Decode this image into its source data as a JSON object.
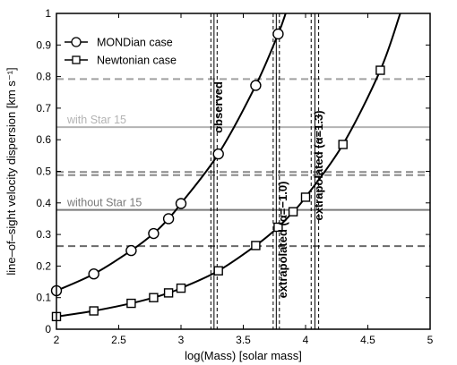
{
  "chart_data": {
    "type": "line",
    "xlabel": "log(Mass) [solar mass]",
    "ylabel": "line–of–sight velocity dispersion [km s⁻¹]",
    "xlim": [
      2,
      5
    ],
    "ylim": [
      0,
      1
    ],
    "xticks": [
      "2",
      "2.5",
      "3",
      "3.5",
      "4",
      "4.5",
      "5"
    ],
    "yticks": [
      "0",
      "0.1",
      "0.2",
      "0.3",
      "0.4",
      "0.5",
      "0.6",
      "0.7",
      "0.8",
      "0.9",
      "1"
    ],
    "legend_position": "top-left",
    "series": [
      {
        "name": "MONDian case",
        "marker": "circle",
        "color": "#000000",
        "x": [
          2.0,
          2.3,
          2.6,
          2.78,
          2.9,
          3.0,
          3.3,
          3.6,
          3.78
        ],
        "y": [
          0.122,
          0.175,
          0.249,
          0.303,
          0.35,
          0.398,
          0.555,
          0.772,
          0.935
        ],
        "curve_end": [
          3.84,
          1.0
        ]
      },
      {
        "name": "Newtonian case",
        "marker": "square",
        "color": "#000000",
        "x": [
          2.0,
          2.3,
          2.6,
          2.78,
          2.9,
          3.0,
          3.3,
          3.6,
          3.78,
          3.9,
          4.0,
          4.3,
          4.6
        ],
        "y": [
          0.04,
          0.058,
          0.082,
          0.1,
          0.115,
          0.13,
          0.185,
          0.265,
          0.323,
          0.372,
          0.418,
          0.585,
          0.82
        ],
        "curve_end": [
          4.76,
          1.0
        ]
      }
    ],
    "horizontal_lines": [
      {
        "y": 0.64,
        "label": "with Star 15",
        "style": "solid",
        "color": "#b3b3b3"
      },
      {
        "y": 0.378,
        "label": "without Star 15",
        "style": "solid",
        "color": "#7a7a7a"
      },
      {
        "y": 0.792,
        "label": "",
        "style": "dashed",
        "color": "#a0a0a0"
      },
      {
        "y": 0.498,
        "label": "",
        "style": "dashed",
        "color": "#8a8a8a"
      },
      {
        "y": 0.488,
        "label": "",
        "style": "dashed",
        "color": "#8a8a8a"
      },
      {
        "y": 0.263,
        "label": "",
        "style": "dashed",
        "color": "#6a6a6a"
      }
    ],
    "vertical_lines": [
      {
        "x": 3.265,
        "label": "observed",
        "lines": [
          3.24,
          3.265,
          3.29
        ]
      },
      {
        "x": 3.765,
        "label": "extrapolated (α=−1.0)",
        "lines": [
          3.74,
          3.765,
          3.79
        ]
      },
      {
        "x": 4.075,
        "label": "extrapolated (α=1.3)",
        "lines": [
          4.045,
          4.075,
          4.105
        ]
      }
    ]
  }
}
